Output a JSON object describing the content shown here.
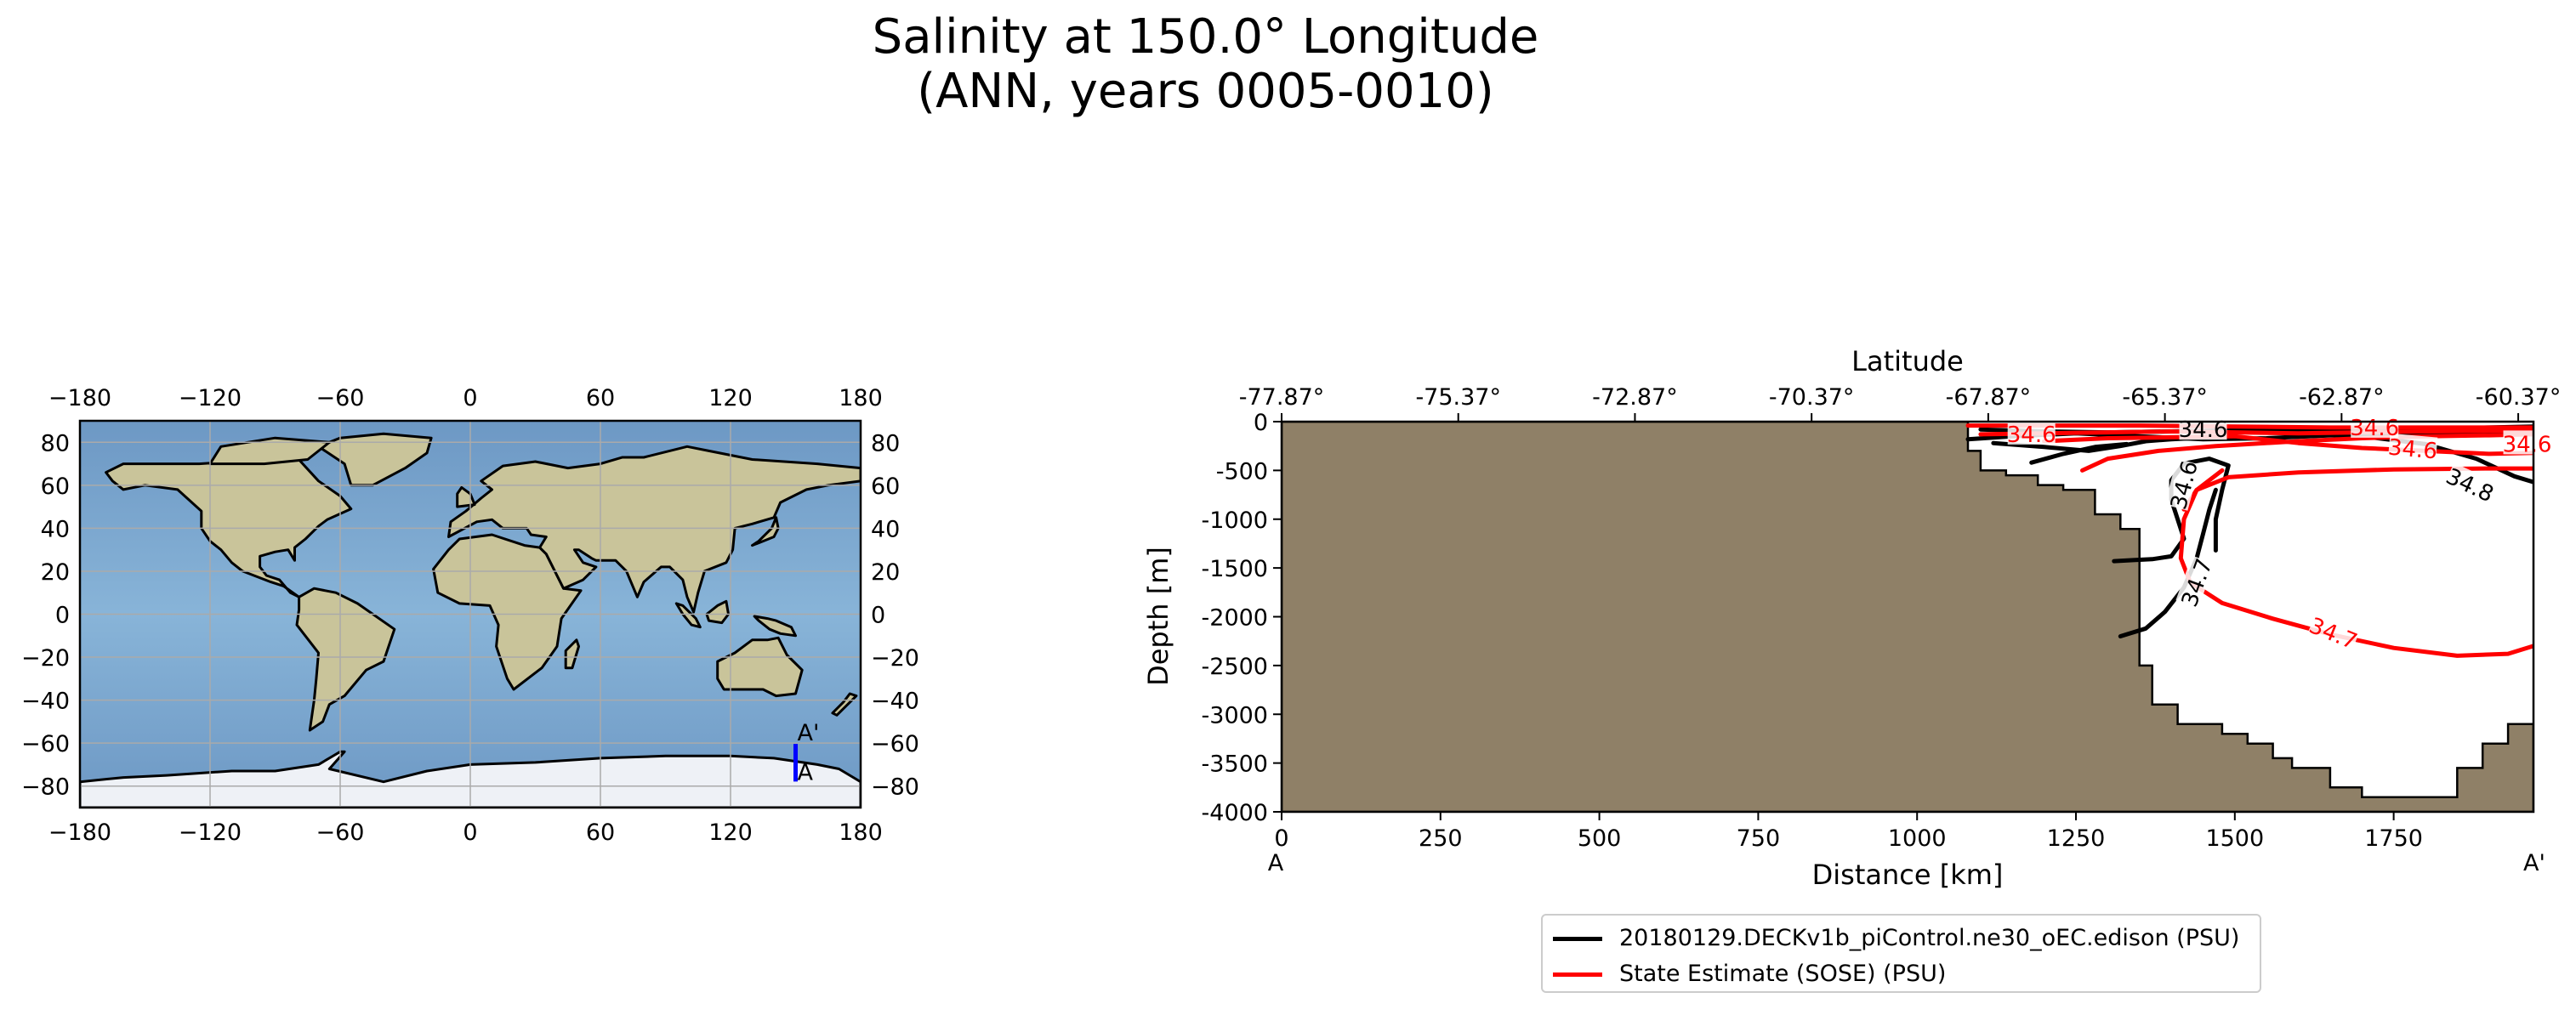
{
  "title": {
    "line1": "Salinity at 150.0° Longitude",
    "line2": "(ANN, years 0005-0010)"
  },
  "map": {
    "x_ticks": [
      "−180",
      "−120",
      "−60",
      "0",
      "60",
      "120",
      "180"
    ],
    "y_ticks": [
      "80",
      "60",
      "40",
      "20",
      "0",
      "−20",
      "−40",
      "−60",
      "−80"
    ],
    "transect_longitude": 150,
    "transect_lat_range": [
      -77.87,
      -60.37
    ],
    "label_start": "A",
    "label_end": "A'",
    "colors": {
      "ocean": "#7fa8cc",
      "land": "#c9c49a",
      "ice": "#eef1f6",
      "transect": "#0000ff"
    }
  },
  "chart_data": {
    "type": "line",
    "title": "Salinity at 150.0° Longitude (ANN, years 0005-0010)",
    "xlabel": "Distance [km]",
    "ylabel": "Depth [m]",
    "top_axis_label": "Latitude",
    "xlim": [
      0,
      1970
    ],
    "ylim": [
      -4000,
      0
    ],
    "x_ticks": [
      0,
      250,
      500,
      750,
      1000,
      1250,
      1500,
      1750
    ],
    "y_ticks": [
      0,
      -500,
      -1000,
      -1500,
      -2000,
      -2500,
      -3000,
      -3500,
      -4000
    ],
    "top_ticks": [
      "-77.87°",
      "-75.37°",
      "-72.87°",
      "-70.37°",
      "-67.87°",
      "-65.37°",
      "-62.87°",
      "-60.37°"
    ],
    "top_tick_positions_km": [
      0,
      278,
      556,
      834,
      1112,
      1390,
      1668,
      1946
    ],
    "start_label": "A",
    "end_label": "A'",
    "bathymetry": {
      "color": "#8f8067",
      "x": [
        0,
        1080,
        1080,
        1100,
        1100,
        1140,
        1140,
        1190,
        1190,
        1230,
        1230,
        1280,
        1280,
        1320,
        1320,
        1350,
        1350,
        1370,
        1370,
        1410,
        1410,
        1480,
        1480,
        1520,
        1520,
        1560,
        1560,
        1590,
        1590,
        1650,
        1650,
        1700,
        1700,
        1850,
        1850,
        1890,
        1890,
        1930,
        1930,
        1970
      ],
      "y": [
        0,
        0,
        -300,
        -300,
        -500,
        -500,
        -550,
        -550,
        -650,
        -650,
        -700,
        -700,
        -950,
        -950,
        -1100,
        -1100,
        -2500,
        -2500,
        -2900,
        -2900,
        -3100,
        -3100,
        -3200,
        -3200,
        -3300,
        -3300,
        -3450,
        -3450,
        -3550,
        -3550,
        -3750,
        -3750,
        -3850,
        -3850,
        -3550,
        -3550,
        -3300,
        -3300,
        -3100,
        -3100
      ]
    },
    "series": [
      {
        "name": "20180129.DECKv1b_piControl.ne30_oEC.edison (PSU)",
        "color": "#000000",
        "contours": [
          {
            "level": "34.6",
            "x": [
              1310,
              1340,
              1370,
              1400,
              1420,
              1410,
              1400,
              1400,
              1420,
              1460,
              1490,
              1480,
              1470,
              1470
            ],
            "y": [
              -1430,
              -1420,
              -1410,
              -1380,
              -1200,
              -1000,
              -800,
              -600,
              -430,
              -380,
              -450,
              -700,
              -1000,
              -1320
            ]
          },
          {
            "level": "34.7",
            "x": [
              1320,
              1360,
              1390,
              1420,
              1440,
              1450,
              1460,
              1470
            ],
            "y": [
              -2200,
              -2120,
              -1950,
              -1700,
              -1400,
              -1150,
              -900,
              -700
            ]
          },
          {
            "level": "34.8",
            "x": [
              1500,
              1600,
              1700,
              1800,
              1880,
              1940,
              1970
            ],
            "y": [
              -100,
              -120,
              -150,
              -230,
              -380,
              -560,
              -620
            ]
          },
          {
            "level": "34.7",
            "x": [
              1100,
              1200,
              1300,
              1400,
              1500,
              1600,
              1700,
              1800,
              1900,
              1970
            ],
            "y": [
              -80,
              -100,
              -110,
              -100,
              -90,
              -80,
              -80,
              -70,
              -60,
              -50
            ]
          },
          {
            "level": "",
            "x": [
              1080,
              1150,
              1250,
              1350,
              1450,
              1550,
              1650,
              1750,
              1850,
              1970
            ],
            "y": [
              -180,
              -150,
              -120,
              -150,
              -180,
              -170,
              -140,
              -120,
              -110,
              -100
            ]
          },
          {
            "level": "",
            "x": [
              1120,
              1200,
              1270,
              1320,
              1360,
              1400,
              1460
            ],
            "y": [
              -220,
              -260,
              -300,
              -250,
              -200,
              -180,
              -160
            ]
          },
          {
            "level": "",
            "x": [
              1180,
              1230,
              1280,
              1330
            ],
            "y": [
              -420,
              -330,
              -260,
              -230
            ]
          }
        ]
      },
      {
        "name": "State Estimate (SOSE) (PSU)",
        "color": "#ff0000",
        "contours": [
          {
            "level": "34.7",
            "x": [
              1480,
              1440,
              1420,
              1415,
              1430,
              1480,
              1560,
              1650,
              1750,
              1850,
              1930,
              1970
            ],
            "y": [
              -500,
              -700,
              -1000,
              -1400,
              -1650,
              -1860,
              -2020,
              -2180,
              -2320,
              -2400,
              -2380,
              -2300
            ]
          },
          {
            "level": "34.8",
            "x": [
              1420,
              1440,
              1490,
              1600,
              1750,
              1900,
              1970
            ],
            "y": [
              -900,
              -700,
              -570,
              -520,
              -490,
              -480,
              -480
            ]
          },
          {
            "level": "34.6",
            "x": [
              1500,
              1600,
              1700,
              1800,
              1900,
              1970
            ],
            "y": [
              -150,
              -220,
              -270,
              -300,
              -330,
              -320
            ]
          },
          {
            "level": "34.6",
            "x": [
              1260,
              1300,
              1380,
              1470,
              1600,
              1700,
              1800,
              1900,
              1970
            ],
            "y": [
              -500,
              -380,
              -300,
              -250,
              -200,
              -170,
              -150,
              -140,
              -130
            ]
          },
          {
            "level": "",
            "x": [
              1080,
              1200,
              1350,
              1500,
              1650,
              1800,
              1970
            ],
            "y": [
              -40,
              -40,
              -40,
              -50,
              -60,
              -60,
              -60
            ]
          },
          {
            "level": "",
            "x": [
              1100,
              1200,
              1300,
              1400,
              1500,
              1600,
              1700,
              1800,
              1970
            ],
            "y": [
              -130,
              -120,
              -110,
              -100,
              -110,
              -120,
              -110,
              -100,
              -90
            ]
          },
          {
            "level": "",
            "x": [
              1200,
              1300,
              1400,
              1500
            ],
            "y": [
              -200,
              -170,
              -160,
              -150
            ]
          }
        ]
      }
    ],
    "contour_labels": [
      {
        "text": "34.6",
        "x": 1420,
        "y": -650,
        "color": "#000000",
        "angle": -75
      },
      {
        "text": "34.7",
        "x": 1440,
        "y": -1650,
        "color": "#000000",
        "angle": -70
      },
      {
        "text": "34.8",
        "x": 1870,
        "y": -650,
        "color": "#000000",
        "angle": 25
      },
      {
        "text": "34.7",
        "x": 1655,
        "y": -2170,
        "color": "#ff0000",
        "angle": 22
      },
      {
        "text": "34.6",
        "x": 1780,
        "y": -280,
        "color": "#ff0000",
        "angle": 5
      },
      {
        "text": "34.6",
        "x": 1180,
        "y": -130,
        "color": "#ff0000",
        "angle": 0
      },
      {
        "text": "34.6",
        "x": 1450,
        "y": -80,
        "color": "#000000",
        "angle": 0
      },
      {
        "text": "34.6",
        "x": 1720,
        "y": -60,
        "color": "#ff0000",
        "angle": 0
      },
      {
        "text": "34.6",
        "x": 1960,
        "y": -230,
        "color": "#ff0000",
        "angle": 0
      }
    ]
  },
  "legend": {
    "entries": [
      {
        "label": "20180129.DECKv1b_piControl.ne30_oEC.edison (PSU)",
        "color": "#000000"
      },
      {
        "label": "State Estimate (SOSE) (PSU)",
        "color": "#ff0000"
      }
    ]
  }
}
